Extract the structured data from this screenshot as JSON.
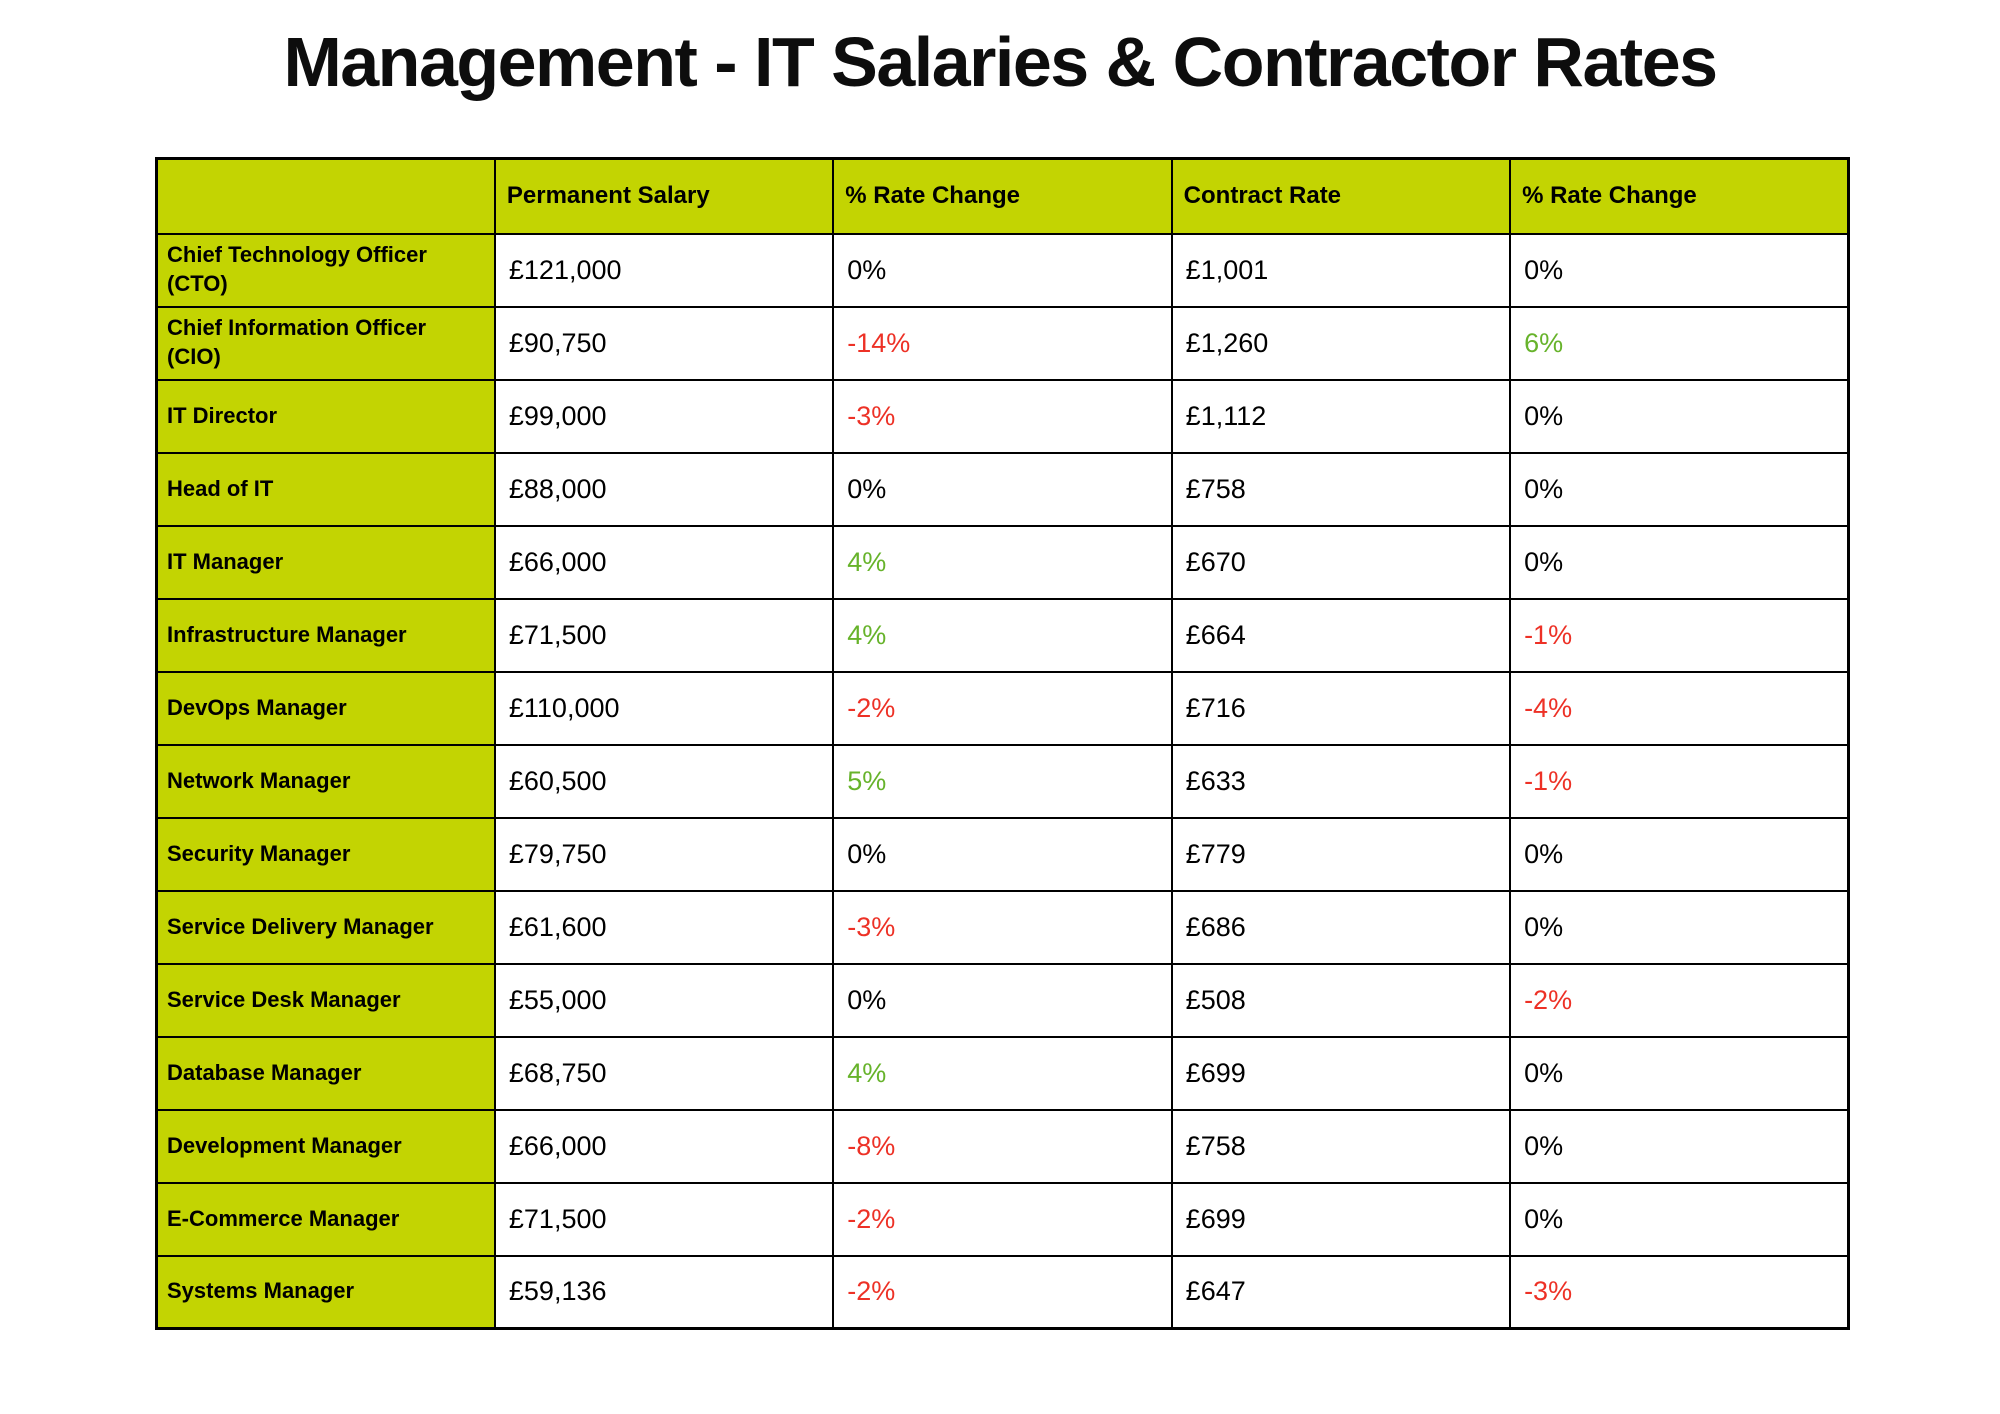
{
  "page": {
    "title": "Management - IT Salaries & Contractor Rates"
  },
  "colors": {
    "cell_green": "#c3d402",
    "negative_red": "#ed3126",
    "positive_green": "#67b32b",
    "neutral_text": "#000000",
    "border": "#000000",
    "background": "#ffffff"
  },
  "chart_data": {
    "type": "table",
    "title": "Management - IT Salaries & Contractor Rates",
    "columns": [
      "",
      "Permanent Salary",
      "% Rate Change",
      "Contract Rate",
      "% Rate Change"
    ],
    "rows": [
      [
        "Chief Technology Officer (CTO)",
        "£121,000",
        "0%",
        "£1,001",
        "0%"
      ],
      [
        "Chief Information Officer (CIO)",
        "£90,750",
        "-14%",
        "£1,260",
        "6%"
      ],
      [
        "IT Director",
        "£99,000",
        "-3%",
        "£1,112",
        "0%"
      ],
      [
        "Head of IT",
        "£88,000",
        "0%",
        "£758",
        "0%"
      ],
      [
        "IT Manager",
        "£66,000",
        "4%",
        "£670",
        "0%"
      ],
      [
        "Infrastructure Manager",
        "£71,500",
        "4%",
        "£664",
        "-1%"
      ],
      [
        "DevOps Manager",
        "£110,000",
        "-2%",
        "£716",
        "-4%"
      ],
      [
        "Network Manager",
        "£60,500",
        "5%",
        "£633",
        "-1%"
      ],
      [
        "Security Manager",
        "£79,750",
        "0%",
        "£779",
        "0%"
      ],
      [
        "Service Delivery Manager",
        "£61,600",
        "-3%",
        "£686",
        "0%"
      ],
      [
        "Service Desk Manager",
        "£55,000",
        "0%",
        "£508",
        "-2%"
      ],
      [
        "Database Manager",
        "£68,750",
        "4%",
        "£699",
        "0%"
      ],
      [
        "Development Manager",
        "£66,000",
        "-8%",
        "£758",
        "0%"
      ],
      [
        "E-Commerce Manager",
        "£71,500",
        "-2%",
        "£699",
        "0%"
      ],
      [
        "Systems Manager",
        "£59,136",
        "-2%",
        "£647",
        "-3%"
      ]
    ],
    "legend": "none",
    "notes": "Percentage change cells: negative values shown in red, positive in green, zero in black. Role column and header row have chartreuse-green background."
  }
}
